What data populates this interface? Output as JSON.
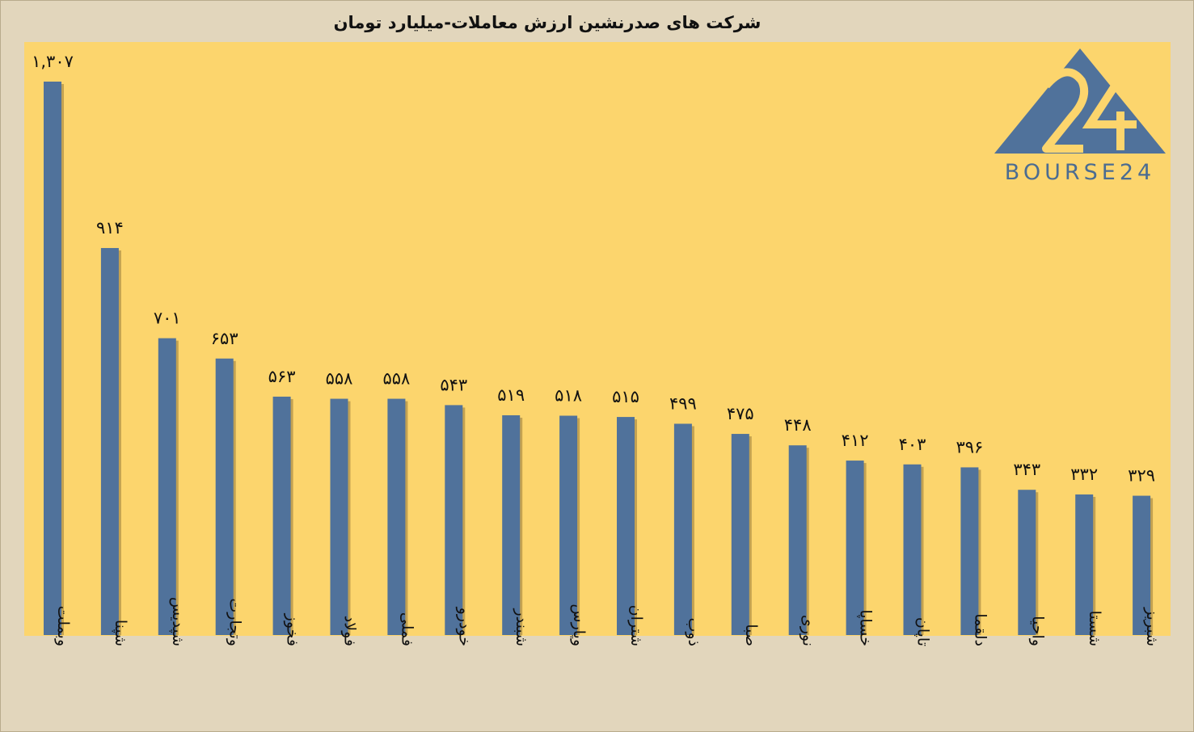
{
  "chart_data": {
    "type": "bar",
    "title": "شرکت های صدرنشین ارزش معاملات-میلیارد تومان",
    "xlabel": "",
    "ylabel": "",
    "ylim": [
      0,
      1370
    ],
    "grid": false,
    "bar_color": "#50729b",
    "background_color": "#fcd56d",
    "categories": [
      "وبملت",
      "شپنا",
      "شپدیس",
      "وتجارت",
      "فخوز",
      "فولاد",
      "فملی",
      "خودرو",
      "شبندر",
      "وپارس",
      "شتران",
      "ذوب",
      "صبا",
      "نوری",
      "خساپا",
      "تاپان",
      "دلقما",
      "واحیا",
      "شستا",
      "شبریز"
    ],
    "values": [
      1307,
      914,
      701,
      653,
      563,
      558,
      558,
      543,
      519,
      518,
      515,
      499,
      475,
      448,
      412,
      403,
      396,
      343,
      332,
      329
    ],
    "data_labels": [
      "۱,۳۰۷",
      "۹۱۴",
      "۷۰۱",
      "۶۵۳",
      "۵۶۳",
      "۵۵۸",
      "۵۵۸",
      "۵۴۳",
      "۵۱۹",
      "۵۱۸",
      "۵۱۵",
      "۴۹۹",
      "۴۷۵",
      "۴۴۸",
      "۴۱۲",
      "۴۰۳",
      "۳۹۶",
      "۳۴۳",
      "۳۳۲",
      "۳۲۹"
    ]
  },
  "logo": {
    "number": "24",
    "text": "BOURSE24",
    "color": "#4b6c91"
  }
}
